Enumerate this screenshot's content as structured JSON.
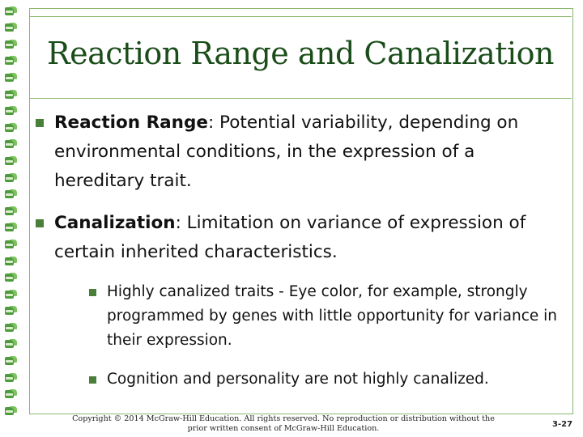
{
  "slide": {
    "title": "Reaction Range and Canalization",
    "bullets": [
      {
        "term": "Reaction Range",
        "text": ": Potential variability, depending on environmental conditions, in the expression of a hereditary trait."
      },
      {
        "term": "Canalization",
        "text": ": Limitation on variance of expression of certain inherited characteristics."
      }
    ],
    "sub_bullets": [
      "Highly canalized traits - Eye color, for example, strongly programmed by genes with little opportunity for variance in their expression.",
      "Cognition and personality are not highly canalized."
    ],
    "footer_line1": "Copyright © 2014 McGraw-Hill Education. All rights reserved. No reproduction or distribution without the",
    "footer_line2": "prior written consent of  McGraw-Hill Education.",
    "page_number": "3-27"
  },
  "colors": {
    "title": "#1a4d1a",
    "bullet": "#4a7f3a",
    "border": "#8ab86e",
    "strip": "#4f9a3e"
  }
}
